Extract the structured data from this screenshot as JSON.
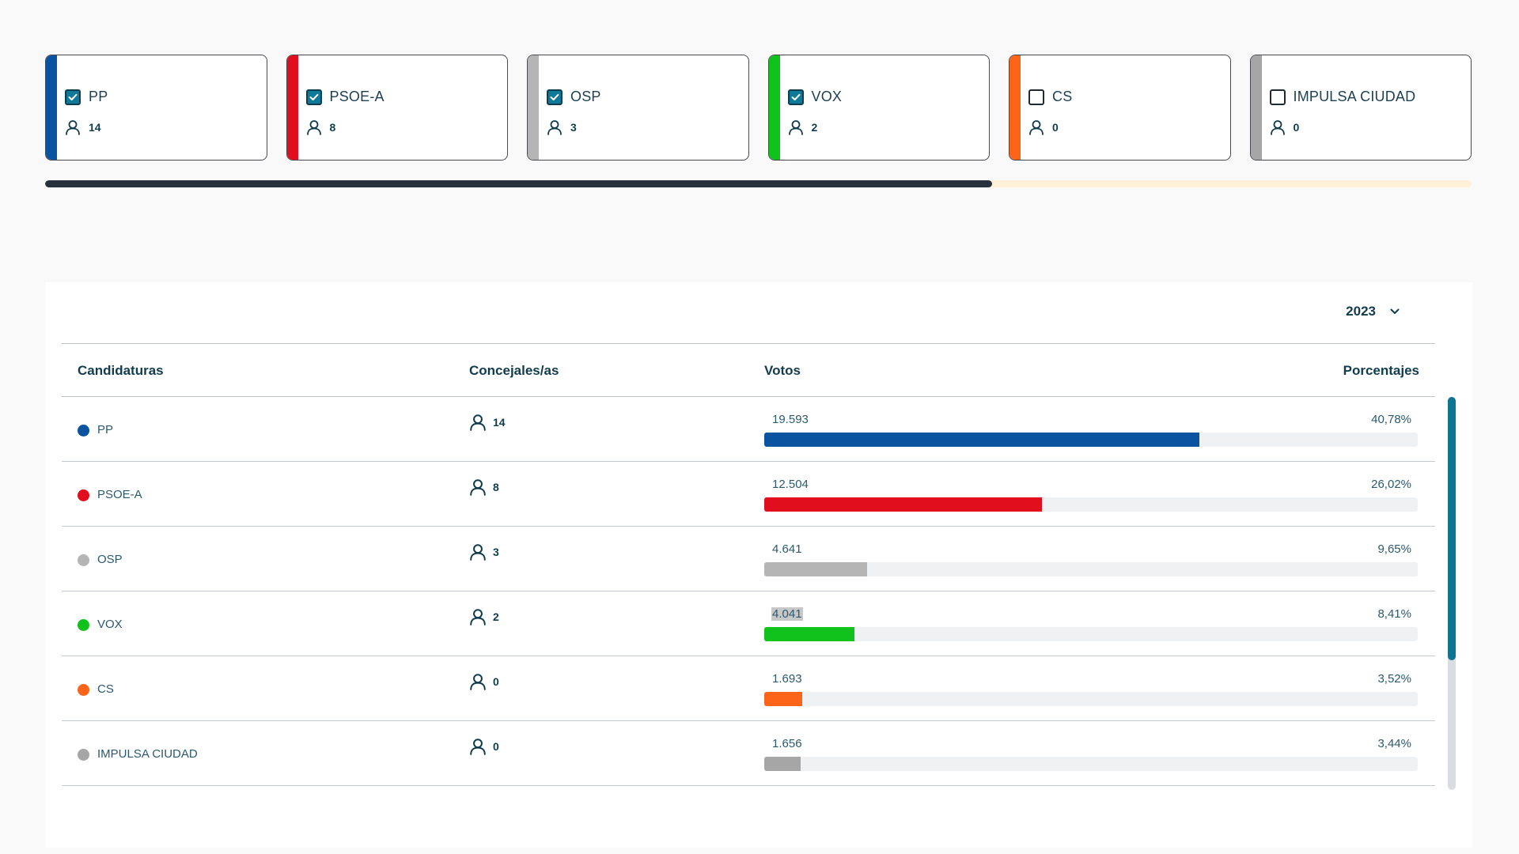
{
  "colors": {
    "PP": "#0a53a1",
    "PSOE-A": "#e10e1e",
    "OSP": "#b5b5b5",
    "VOX": "#12c21c",
    "CS": "#fb6419",
    "IMPULSA CIUDAD": "#a6a6a6"
  },
  "cards": [
    {
      "name": "PP",
      "seats": "14",
      "checked": true
    },
    {
      "name": "PSOE-A",
      "seats": "8",
      "checked": true
    },
    {
      "name": "OSP",
      "seats": "3",
      "checked": true
    },
    {
      "name": "VOX",
      "seats": "2",
      "checked": true
    },
    {
      "name": "CS",
      "seats": "0",
      "checked": false
    },
    {
      "name": "IMPULSA CIUDAD",
      "seats": "0",
      "checked": false
    }
  ],
  "progress": {
    "fraction": 0.664
  },
  "year_select": {
    "value": "2023"
  },
  "table": {
    "headers": {
      "candidaturas": "Candidaturas",
      "concejales": "Concejales/as",
      "votos": "Votos",
      "porcentajes": "Porcentajes"
    },
    "rows": [
      {
        "name": "PP",
        "seats": "14",
        "votes": "19.593",
        "pct": "40,78%",
        "pct_value": 40.78
      },
      {
        "name": "PSOE-A",
        "seats": "8",
        "votes": "12.504",
        "pct": "26,02%",
        "pct_value": 26.02
      },
      {
        "name": "OSP",
        "seats": "3",
        "votes": "4.641",
        "pct": "9,65%",
        "pct_value": 9.65
      },
      {
        "name": "VOX",
        "seats": "2",
        "votes": "4.041",
        "pct": "8,41%",
        "pct_value": 8.41,
        "highlighted": true
      },
      {
        "name": "CS",
        "seats": "0",
        "votes": "1.693",
        "pct": "3,52%",
        "pct_value": 3.52
      },
      {
        "name": "IMPULSA CIUDAD",
        "seats": "0",
        "votes": "1.656",
        "pct": "3,44%",
        "pct_value": 3.44
      }
    ]
  },
  "scroll": {
    "fraction": 0.67
  }
}
